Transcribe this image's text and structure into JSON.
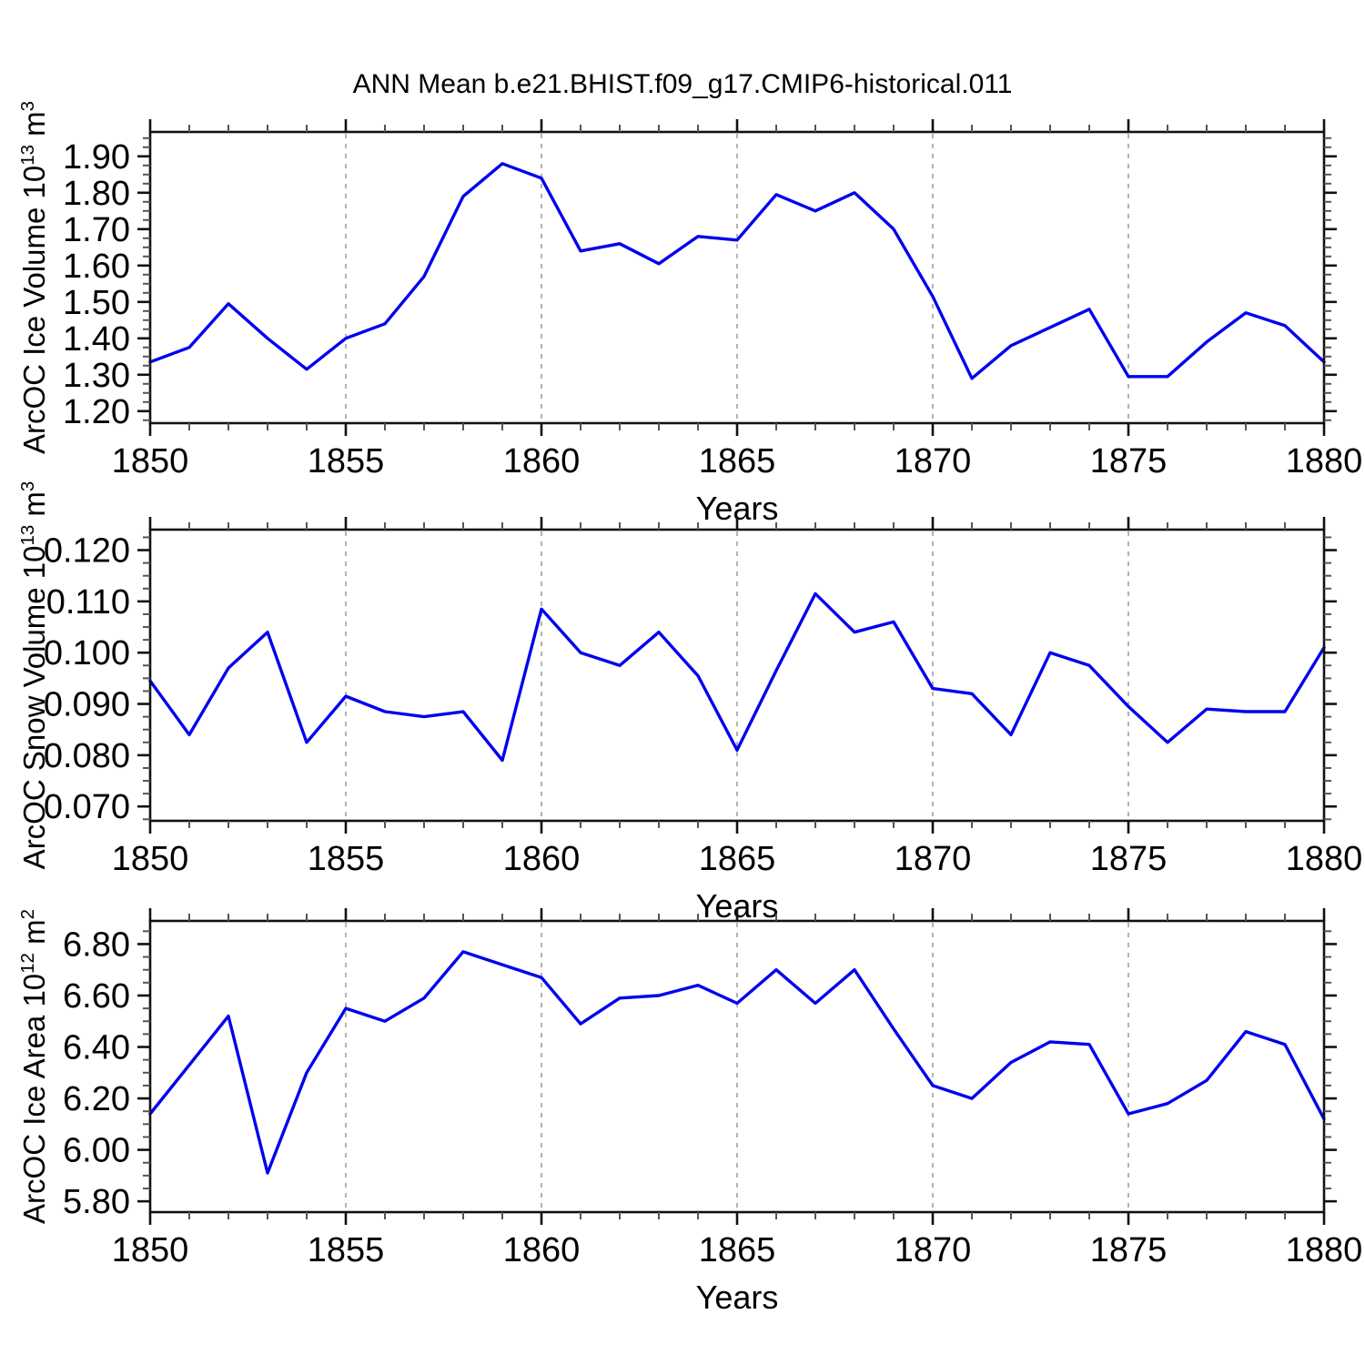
{
  "title": "ANN Mean b.e21.BHIST.f09_g17.CMIP6-historical.011",
  "style": {
    "line_color": "#0000ee",
    "axis_color": "#111111",
    "major_tick_color": "#111111",
    "minor_tick_color": "#555555",
    "grid_color": "#a0a0a0",
    "background": "#ffffff"
  },
  "chart_data": [
    {
      "type": "line",
      "name": "arcoc-ice-volume",
      "ylabel_parts": [
        {
          "t": "ArcOC Ice Volume 10"
        },
        {
          "sup": "13"
        },
        {
          "t": " m"
        },
        {
          "sup": "3"
        }
      ],
      "xlabel": "Years",
      "legend": "none",
      "grid": "vertical-dashed",
      "x_range": [
        1850,
        1880
      ],
      "xticks": [
        1850,
        1855,
        1860,
        1865,
        1870,
        1875,
        1880
      ],
      "xtick_labels": [
        "1850",
        "1855",
        "1860",
        "1865",
        "1870",
        "1875",
        "1880"
      ],
      "x_minor_step": 1,
      "grid_x": [
        1855,
        1860,
        1865,
        1870,
        1875
      ],
      "ylim": [
        1.167,
        1.967
      ],
      "yticks": [
        1.2,
        1.3,
        1.4,
        1.5,
        1.6,
        1.7,
        1.8,
        1.9
      ],
      "ytick_labels": [
        "1.20",
        "1.30",
        "1.40",
        "1.50",
        "1.60",
        "1.70",
        "1.80",
        "1.90"
      ],
      "y_minor_step": 0.025,
      "x": [
        1850,
        1851,
        1852,
        1853,
        1854,
        1855,
        1856,
        1857,
        1858,
        1859,
        1860,
        1861,
        1862,
        1863,
        1864,
        1865,
        1866,
        1867,
        1868,
        1869,
        1870,
        1871,
        1872,
        1873,
        1874,
        1875,
        1876,
        1877,
        1878,
        1879,
        1880
      ],
      "values": [
        1.335,
        1.375,
        1.495,
        1.4,
        1.315,
        1.4,
        1.44,
        1.57,
        1.79,
        1.88,
        1.84,
        1.64,
        1.66,
        1.605,
        1.68,
        1.67,
        1.795,
        1.75,
        1.8,
        1.7,
        1.515,
        1.29,
        1.38,
        1.43,
        1.48,
        1.295,
        1.295,
        1.39,
        1.47,
        1.435,
        1.335
      ]
    },
    {
      "type": "line",
      "name": "arcoc-snow-volume",
      "ylabel_parts": [
        {
          "t": "ArcOC Snow Volume 10"
        },
        {
          "sup": "13"
        },
        {
          "t": " m"
        },
        {
          "sup": "3"
        }
      ],
      "xlabel": "Years",
      "legend": "none",
      "grid": "vertical-dashed",
      "x_range": [
        1850,
        1880
      ],
      "xticks": [
        1850,
        1855,
        1860,
        1865,
        1870,
        1875,
        1880
      ],
      "xtick_labels": [
        "1850",
        "1855",
        "1860",
        "1865",
        "1870",
        "1875",
        "1880"
      ],
      "x_minor_step": 1,
      "grid_x": [
        1855,
        1860,
        1865,
        1870,
        1875
      ],
      "ylim": [
        0.0672,
        0.124
      ],
      "yticks": [
        0.07,
        0.08,
        0.09,
        0.1,
        0.11,
        0.12
      ],
      "ytick_labels": [
        "0.070",
        "0.080",
        "0.090",
        "0.100",
        "0.110",
        "0.120"
      ],
      "y_minor_step": 0.0025,
      "x": [
        1850,
        1851,
        1852,
        1853,
        1854,
        1855,
        1856,
        1857,
        1858,
        1859,
        1860,
        1861,
        1862,
        1863,
        1864,
        1865,
        1866,
        1867,
        1868,
        1869,
        1870,
        1871,
        1872,
        1873,
        1874,
        1875,
        1876,
        1877,
        1878,
        1879,
        1880
      ],
      "values": [
        0.0945,
        0.084,
        0.097,
        0.104,
        0.0825,
        0.0915,
        0.0885,
        0.0875,
        0.0885,
        0.079,
        0.1085,
        0.1,
        0.0975,
        0.104,
        0.0955,
        0.081,
        0.0965,
        0.1115,
        0.104,
        0.106,
        0.093,
        0.092,
        0.084,
        0.1,
        0.0975,
        0.0895,
        0.0825,
        0.089,
        0.0885,
        0.0885,
        0.101
      ]
    },
    {
      "type": "line",
      "name": "arcoc-ice-area",
      "ylabel_parts": [
        {
          "t": "ArcOC Ice Area 10"
        },
        {
          "sup": "12"
        },
        {
          "t": " m"
        },
        {
          "sup": "2"
        }
      ],
      "xlabel": "Years",
      "legend": "none",
      "grid": "vertical-dashed",
      "x_range": [
        1850,
        1880
      ],
      "xticks": [
        1850,
        1855,
        1860,
        1865,
        1870,
        1875,
        1880
      ],
      "xtick_labels": [
        "1850",
        "1855",
        "1860",
        "1865",
        "1870",
        "1875",
        "1880"
      ],
      "x_minor_step": 1,
      "grid_x": [
        1855,
        1860,
        1865,
        1870,
        1875
      ],
      "ylim": [
        5.758,
        6.89
      ],
      "yticks": [
        5.8,
        6.0,
        6.2,
        6.4,
        6.6,
        6.8
      ],
      "ytick_labels": [
        "5.80",
        "6.00",
        "6.20",
        "6.40",
        "6.60",
        "6.80"
      ],
      "y_minor_step": 0.05,
      "x": [
        1850,
        1851,
        1852,
        1853,
        1854,
        1855,
        1856,
        1857,
        1858,
        1859,
        1860,
        1861,
        1862,
        1863,
        1864,
        1865,
        1866,
        1867,
        1868,
        1869,
        1870,
        1871,
        1872,
        1873,
        1874,
        1875,
        1876,
        1877,
        1878,
        1879,
        1880
      ],
      "values": [
        6.14,
        6.33,
        6.52,
        5.91,
        6.3,
        6.55,
        6.5,
        6.59,
        6.77,
        6.72,
        6.67,
        6.49,
        6.59,
        6.6,
        6.64,
        6.57,
        6.7,
        6.57,
        6.7,
        6.47,
        6.25,
        6.2,
        6.34,
        6.42,
        6.41,
        6.14,
        6.18,
        6.27,
        6.46,
        6.41,
        6.12
      ]
    }
  ]
}
